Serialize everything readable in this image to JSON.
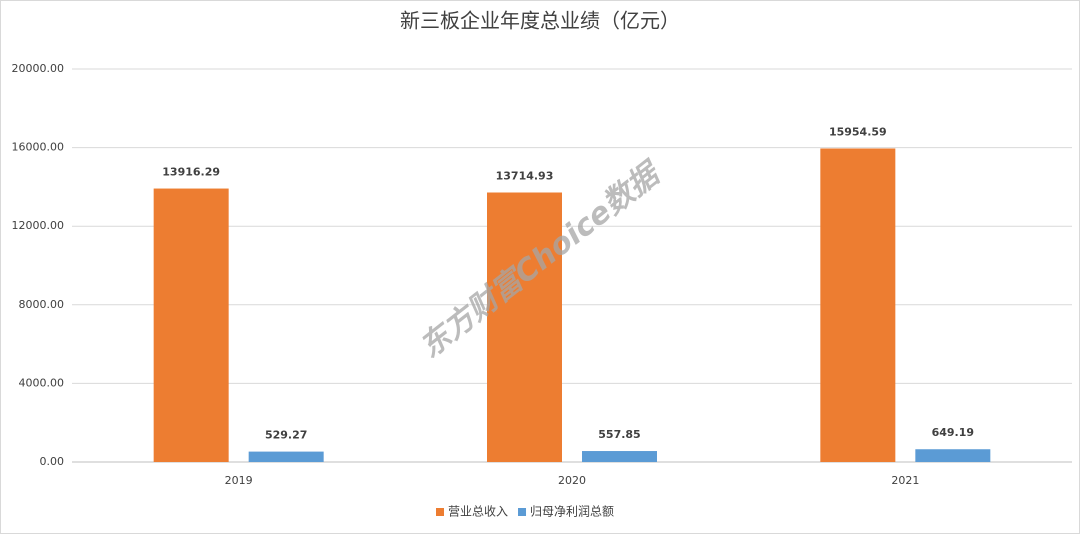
{
  "chart_data": {
    "type": "bar",
    "title": "新三板企业年度总业绩（亿元）",
    "categories": [
      "2019",
      "2020",
      "2021"
    ],
    "series": [
      {
        "name": "营业总收入",
        "color": "#ed7d31",
        "values": [
          13916.29,
          13714.93,
          15954.59
        ]
      },
      {
        "name": "归母净利润总额",
        "color": "#5b9bd5",
        "values": [
          529.27,
          557.85,
          649.19
        ]
      }
    ],
    "ylim": [
      0,
      20000
    ],
    "yticks": [
      {
        "value": 0,
        "label": "0.00"
      },
      {
        "value": 4000,
        "label": "4000.00"
      },
      {
        "value": 8000,
        "label": "8000.00"
      },
      {
        "value": 12000,
        "label": "12000.00"
      },
      {
        "value": 16000,
        "label": "16000.00"
      },
      {
        "value": 20000,
        "label": "20000.00"
      }
    ],
    "grid": true,
    "legend": "bottom",
    "watermark": "东方财富Choice数据"
  }
}
